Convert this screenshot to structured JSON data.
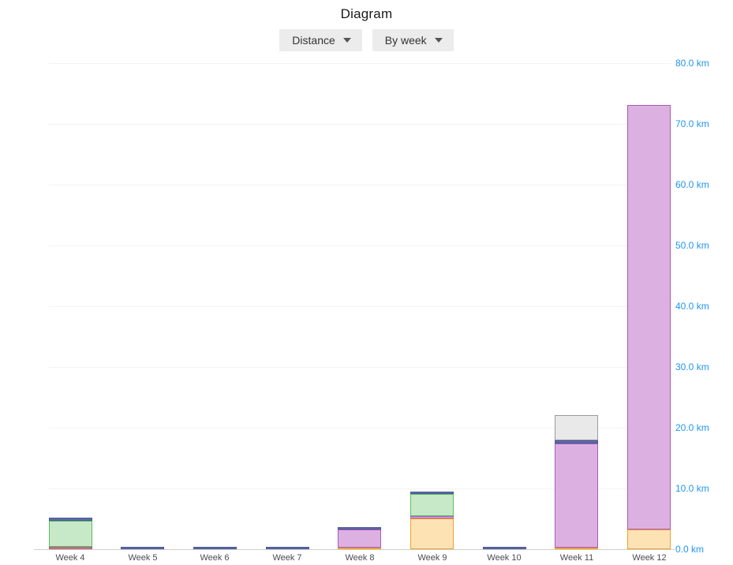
{
  "header": {
    "title": "Diagram"
  },
  "controls": {
    "metric_dropdown": {
      "label": "Distance"
    },
    "grouping_dropdown": {
      "label": "By week"
    }
  },
  "chart_data": {
    "type": "bar",
    "stacked": true,
    "title": "Diagram",
    "xlabel": "",
    "ylabel": "km",
    "ylim": [
      0,
      80
    ],
    "y_tick_interval": 10,
    "grid": true,
    "legend_position": "none",
    "axis_label_color": "#2196f3",
    "x_label_color": "#4a4a55",
    "categories": [
      "Week 4",
      "Week 5",
      "Week 6",
      "Week 7",
      "Week 8",
      "Week 9",
      "Week 10",
      "Week 11",
      "Week 12"
    ],
    "y_tick_labels": [
      "0.0 km",
      "10.0 km",
      "20.0 km",
      "30.0 km",
      "40.0 km",
      "50.0 km",
      "60.0 km",
      "70.0 km",
      "80.0 km"
    ],
    "series": [
      {
        "name": "orange",
        "fill": "#fde3b3",
        "border": "#f0a030",
        "values": [
          0,
          0,
          0,
          0,
          0.3,
          5.1,
          0,
          0.3,
          3.2
        ]
      },
      {
        "name": "pink",
        "fill": "#d893a0",
        "border": "#a9546a",
        "values": [
          0.4,
          0,
          0,
          0,
          0,
          0,
          0,
          0,
          0
        ]
      },
      {
        "name": "purple",
        "fill": "#dcb1e2",
        "border": "#ac59b5",
        "values": [
          0,
          0,
          0,
          0,
          3.0,
          0.4,
          0,
          17.1,
          69.9
        ]
      },
      {
        "name": "green",
        "fill": "#c8e9c8",
        "border": "#57bf61",
        "values": [
          4.3,
          0,
          0,
          0,
          0,
          3.6,
          0,
          0,
          0
        ]
      },
      {
        "name": "blue",
        "fill": "#5d6ba8",
        "border": "#4b5996",
        "values": [
          0.5,
          0.4,
          0.4,
          0.4,
          0.4,
          0.4,
          0.4,
          0.5,
          0
        ]
      },
      {
        "name": "gray",
        "fill": "#e9e9e9",
        "border": "#9b9b9b",
        "values": [
          0,
          0,
          0,
          0,
          0,
          0,
          0,
          4.1,
          0
        ]
      }
    ],
    "totals_km": [
      5.2,
      0.4,
      0.4,
      0.4,
      3.7,
      9.5,
      0.4,
      22.0,
      73.1
    ]
  }
}
